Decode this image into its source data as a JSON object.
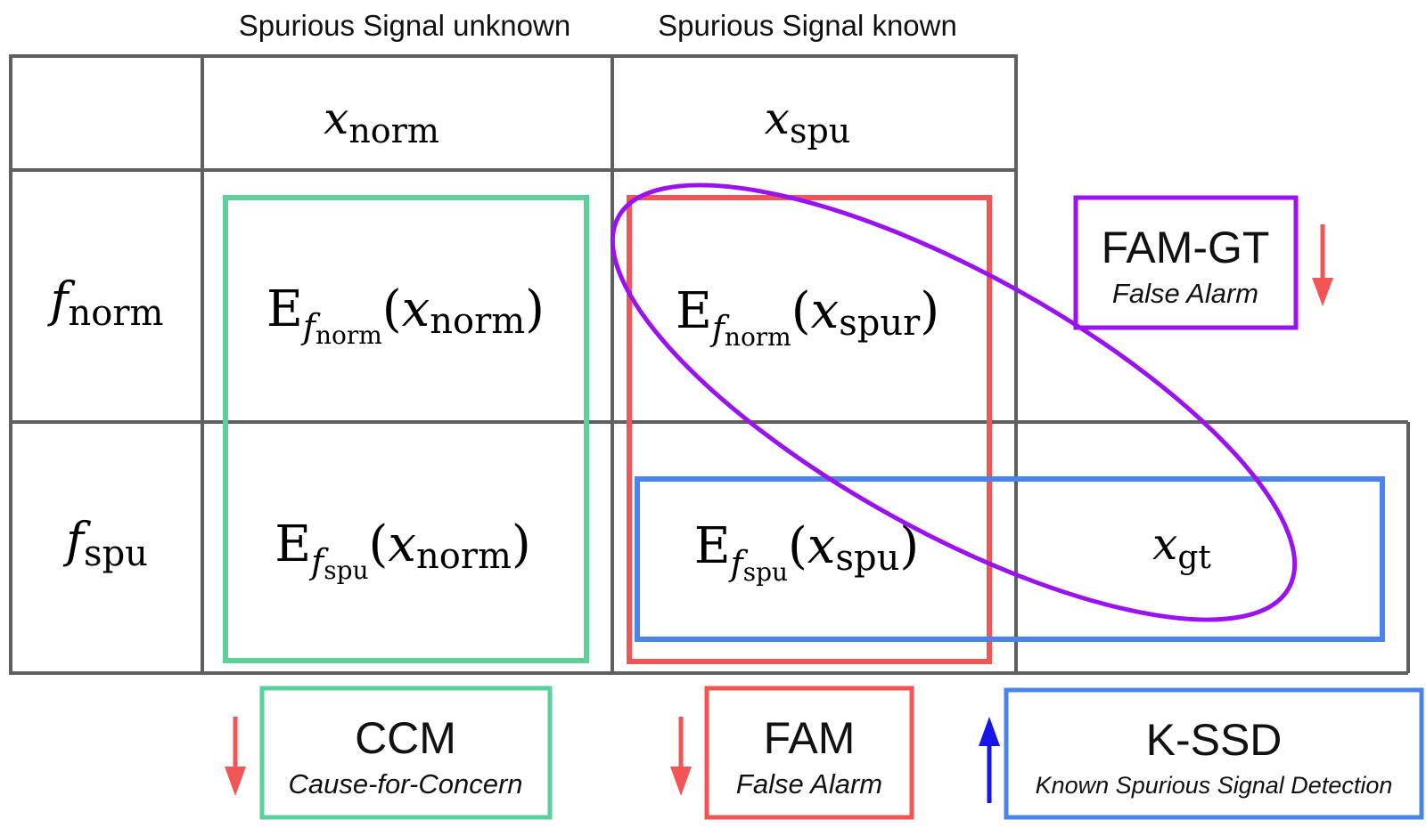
{
  "headers": {
    "col_unknown": "Spurious Signal unknown",
    "col_known": "Spurious Signal known"
  },
  "columns": {
    "x_norm": {
      "base": "x",
      "sub": "norm"
    },
    "x_spu": {
      "base": "x",
      "sub": "spu"
    }
  },
  "rows": {
    "f_norm": {
      "base": "f",
      "sub": "norm"
    },
    "f_spu": {
      "base": "f",
      "sub": "spu"
    }
  },
  "cells": {
    "fnorm_xnorm": {
      "e": "E",
      "f": "f",
      "fsub": "norm",
      "open": "(",
      "x": "x",
      "xsub": "norm",
      "close": ")"
    },
    "fnorm_xspur": {
      "e": "E",
      "f": "f",
      "fsub": "norm",
      "open": "(",
      "x": "x",
      "xsub": "spur",
      "close": ")"
    },
    "fspu_xnorm": {
      "e": "E",
      "f": "f",
      "fsub": "spu",
      "open": "(",
      "x": "x",
      "xsub": "norm",
      "close": ")"
    },
    "fspu_xspu": {
      "e": "E",
      "f": "f",
      "fsub": "spu",
      "open": "(",
      "x": "x",
      "xsub": "spu",
      "close": ")"
    },
    "x_gt": {
      "x": "x",
      "xsub": "gt"
    }
  },
  "metrics": {
    "ccm": {
      "name": "CCM",
      "desc": "Cause-for-Concern",
      "color": "#5bd09a",
      "direction": "down"
    },
    "fam": {
      "name": "FAM",
      "desc": "False Alarm",
      "color": "#f25555",
      "direction": "down"
    },
    "kssd": {
      "name": "K-SSD",
      "desc": "Known Spurious Signal Detection",
      "color": "#4a84e8",
      "direction": "up"
    },
    "famgt": {
      "name": "FAM-GT",
      "desc": "False Alarm",
      "color": "#9a12f0",
      "direction": "down"
    }
  },
  "colors": {
    "grid": "#5f5f5f",
    "arrow_down": "#f25555",
    "arrow_up": "#1515e8"
  }
}
